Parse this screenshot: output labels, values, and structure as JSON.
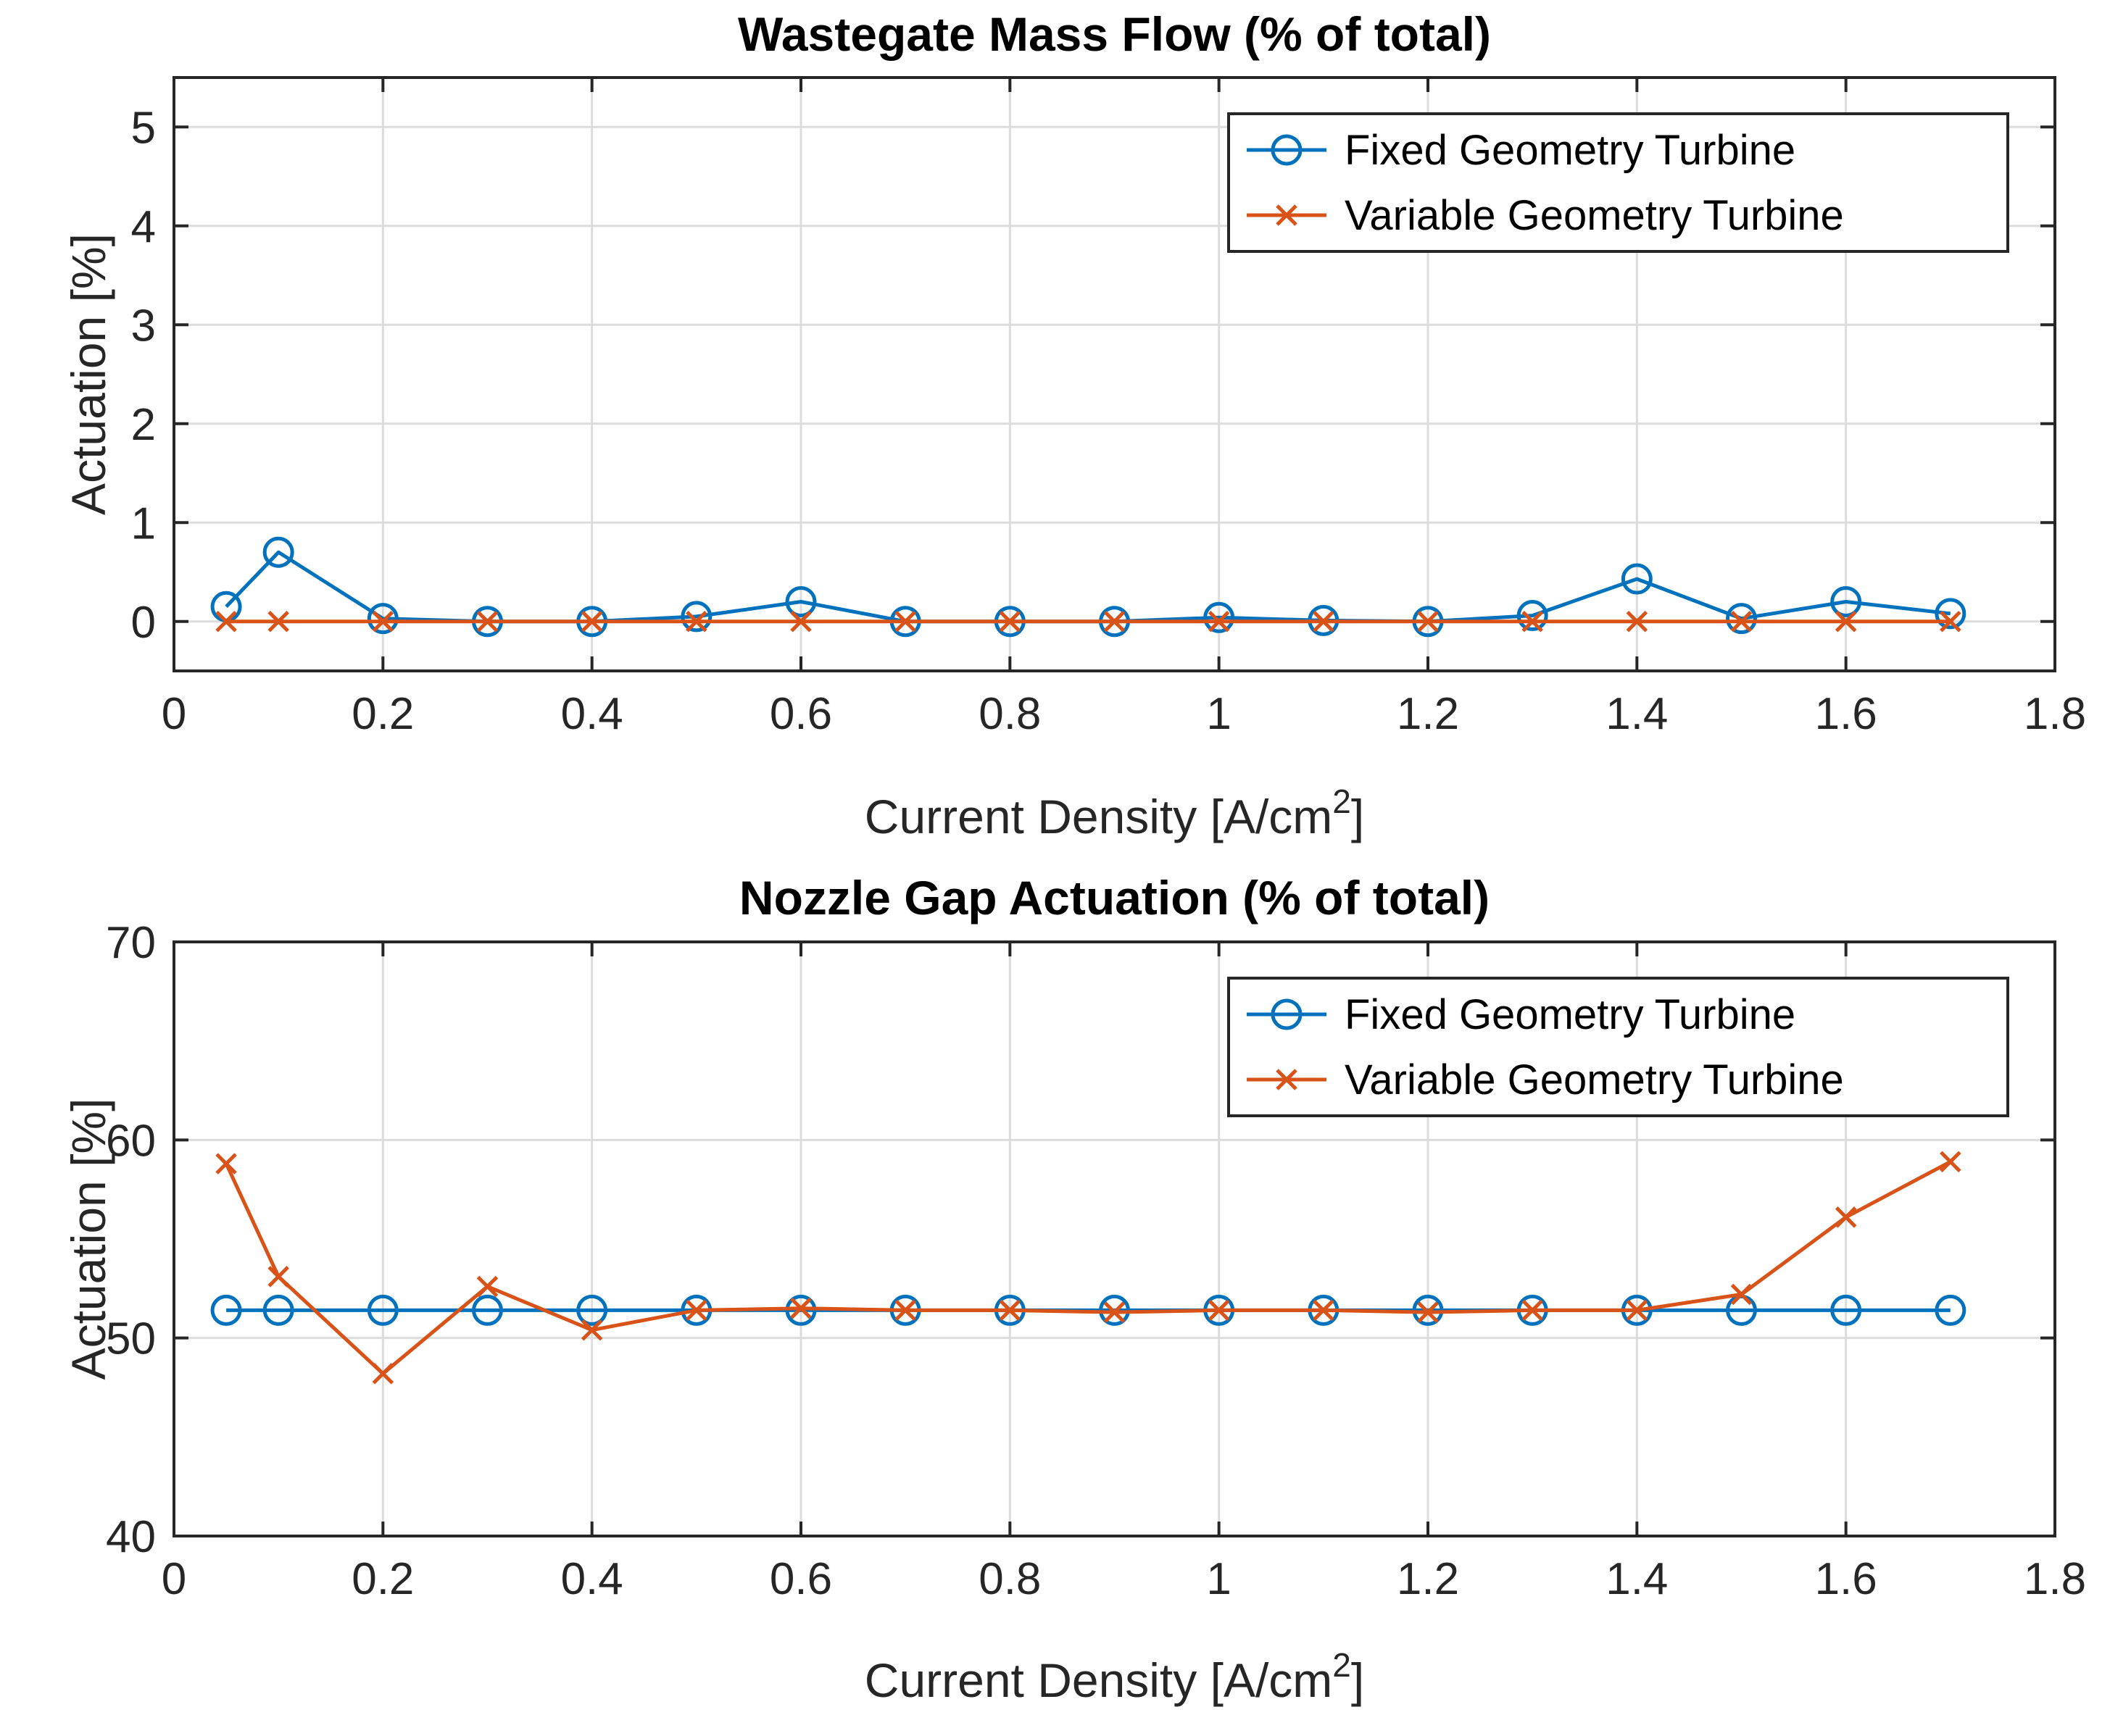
{
  "chart_data": [
    {
      "type": "line",
      "title": "Wastegate Mass Flow (% of total)",
      "xlabel": "Current Density [A/cm",
      "xlabel_sup": "2",
      "xlabel_end": "]",
      "ylabel": "Actuation [%]",
      "xlim": [
        0,
        1.8
      ],
      "ylim": [
        -0.5,
        5.5
      ],
      "xticks": [
        0,
        0.2,
        0.4,
        0.6,
        0.8,
        1,
        1.2,
        1.4,
        1.6,
        1.8
      ],
      "xtick_labels": [
        "0",
        "0.2",
        "0.4",
        "0.6",
        "0.8",
        "1",
        "1.2",
        "1.4",
        "1.6",
        "1.8"
      ],
      "yticks": [
        0,
        1,
        2,
        3,
        4,
        5
      ],
      "ytick_labels": [
        "0",
        "1",
        "2",
        "3",
        "4",
        "5"
      ],
      "grid": true,
      "legend_position": "top-right",
      "x": [
        0.05,
        0.1,
        0.2,
        0.3,
        0.4,
        0.5,
        0.6,
        0.7,
        0.8,
        0.9,
        1.0,
        1.1,
        1.2,
        1.3,
        1.4,
        1.5,
        1.6,
        1.7
      ],
      "series": [
        {
          "name": "Fixed Geometry Turbine",
          "color": "#0072BD",
          "marker": "circle",
          "values": [
            0.15,
            0.7,
            0.03,
            0.0,
            0.0,
            0.05,
            0.2,
            0.0,
            0.0,
            0.0,
            0.04,
            0.01,
            0.0,
            0.06,
            0.43,
            0.03,
            0.2,
            0.08
          ]
        },
        {
          "name": "Variable Geometry Turbine",
          "color": "#D95319",
          "marker": "x",
          "values": [
            0,
            0,
            0,
            0,
            0,
            0,
            0,
            0,
            0,
            0,
            0,
            0,
            0,
            0,
            0,
            0,
            0,
            0
          ]
        }
      ]
    },
    {
      "type": "line",
      "title": "Nozzle Gap Actuation (% of total)",
      "xlabel": "Current Density [A/cm",
      "xlabel_sup": "2",
      "xlabel_end": "]",
      "ylabel": "Actuation [%]",
      "xlim": [
        0,
        1.8
      ],
      "ylim": [
        40,
        70
      ],
      "xticks": [
        0,
        0.2,
        0.4,
        0.6,
        0.8,
        1,
        1.2,
        1.4,
        1.6,
        1.8
      ],
      "xtick_labels": [
        "0",
        "0.2",
        "0.4",
        "0.6",
        "0.8",
        "1",
        "1.2",
        "1.4",
        "1.6",
        "1.8"
      ],
      "yticks": [
        40,
        50,
        60,
        70
      ],
      "ytick_labels": [
        "40",
        "50",
        "60",
        "70"
      ],
      "grid": true,
      "legend_position": "top-right",
      "x": [
        0.05,
        0.1,
        0.2,
        0.3,
        0.4,
        0.5,
        0.6,
        0.7,
        0.8,
        0.9,
        1.0,
        1.1,
        1.2,
        1.3,
        1.4,
        1.5,
        1.6,
        1.7
      ],
      "series": [
        {
          "name": "Fixed Geometry Turbine",
          "color": "#0072BD",
          "marker": "circle",
          "values": [
            51.4,
            51.4,
            51.4,
            51.4,
            51.4,
            51.4,
            51.4,
            51.4,
            51.4,
            51.4,
            51.4,
            51.4,
            51.4,
            51.4,
            51.4,
            51.4,
            51.4,
            51.4
          ]
        },
        {
          "name": "Variable Geometry Turbine",
          "color": "#D95319",
          "marker": "x",
          "values": [
            58.8,
            53.1,
            48.2,
            52.6,
            50.4,
            51.4,
            51.5,
            51.4,
            51.4,
            51.3,
            51.4,
            51.4,
            51.3,
            51.4,
            51.4,
            52.2,
            56.1,
            58.9
          ]
        }
      ]
    }
  ]
}
